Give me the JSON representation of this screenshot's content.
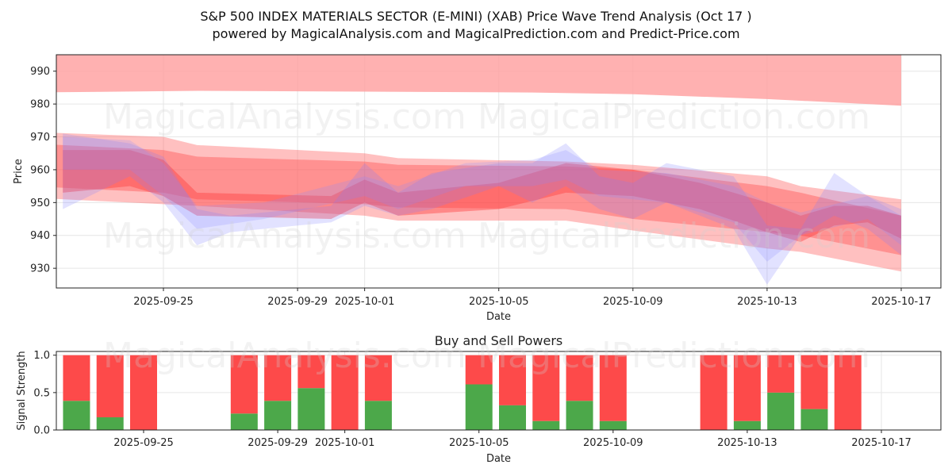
{
  "header": {
    "title": "S&P 500 INDEX MATERIALS SECTOR (E-MINI) (XAB) Price Wave Trend Analysis (Oct 17 )",
    "subtitle": "powered by MagicalAnalysis.com and MagicalPrediction.com and Predict-Price.com"
  },
  "watermarks": {
    "left": "MagicalAnalysis.com",
    "right": "MagicalPrediction.com"
  },
  "colors": {
    "buy": "#4ca84a",
    "sell": "#fd4a4a",
    "band_red": "#ff2a2a",
    "band_blue": "#6a6aff"
  },
  "chart_data": [
    {
      "type": "area",
      "name": "price-wave-trend",
      "title": "",
      "xlabel": "Date",
      "ylabel": "Price",
      "ylim": [
        924,
        995
      ],
      "xlim": [
        "2025-09-21",
        "2025-10-18"
      ],
      "grid": true,
      "xticks": [
        "2025-09-25",
        "2025-09-29",
        "2025-10-01",
        "2025-10-05",
        "2025-10-09",
        "2025-10-13",
        "2025-10-17"
      ],
      "yticks": [
        930,
        940,
        950,
        960,
        970,
        980,
        990
      ],
      "series": [
        {
          "name": "upper-projection-band",
          "color": "#ff9e9e",
          "x": [
            "2025-09-21",
            "2025-09-26",
            "2025-10-06",
            "2025-10-09",
            "2025-10-13",
            "2025-10-17"
          ],
          "upper": [
            996,
            996,
            996,
            996,
            996,
            996
          ],
          "lower": [
            983.5,
            984,
            983.5,
            983,
            981.5,
            979.5
          ]
        },
        {
          "name": "wave-band-1",
          "color": "#ff6a6a",
          "x": [
            "2025-09-21",
            "2025-09-25",
            "2025-09-26",
            "2025-10-01",
            "2025-10-02",
            "2025-10-07",
            "2025-10-09",
            "2025-10-13",
            "2025-10-14",
            "2025-10-17"
          ],
          "upper": [
            971.5,
            970,
            967.5,
            965,
            963.5,
            962.5,
            961.5,
            958,
            955,
            951
          ],
          "lower": [
            951.5,
            949.5,
            949,
            946,
            944.5,
            944.5,
            941.5,
            936,
            935,
            929
          ]
        },
        {
          "name": "wave-band-2",
          "color": "#ff5252",
          "x": [
            "2025-09-21",
            "2025-09-25",
            "2025-09-26",
            "2025-10-01",
            "2025-10-02",
            "2025-10-07",
            "2025-10-09",
            "2025-10-13",
            "2025-10-14",
            "2025-10-17"
          ],
          "upper": [
            968,
            966,
            964,
            962.5,
            961.5,
            961,
            960,
            955,
            953,
            946
          ],
          "lower": [
            955,
            953,
            951,
            949.5,
            948.5,
            948,
            945,
            941,
            940,
            934
          ]
        },
        {
          "name": "wave-band-3",
          "color": "#ff3b3b",
          "x": [
            "2025-09-22",
            "2025-09-24",
            "2025-09-25",
            "2025-09-26",
            "2025-09-30",
            "2025-10-01",
            "2025-10-02",
            "2025-10-05",
            "2025-10-07",
            "2025-10-09",
            "2025-10-11",
            "2025-10-13",
            "2025-10-14",
            "2025-10-15",
            "2025-10-16",
            "2025-10-17"
          ],
          "upper": [
            966,
            966,
            963,
            953,
            952,
            957,
            953,
            956,
            962,
            960,
            956,
            950,
            946,
            949,
            949,
            946
          ],
          "lower": [
            953,
            955,
            952,
            946,
            945,
            950,
            946,
            948,
            953,
            952,
            948,
            941,
            938,
            943,
            944,
            939
          ]
        },
        {
          "name": "blue-wave-1",
          "color": "#7a7aff",
          "x": [
            "2025-09-22",
            "2025-09-24",
            "2025-09-25",
            "2025-09-26",
            "2025-09-27",
            "2025-09-30",
            "2025-10-01",
            "2025-10-02",
            "2025-10-03",
            "2025-10-05",
            "2025-10-06",
            "2025-10-07",
            "2025-10-08",
            "2025-10-09",
            "2025-10-10",
            "2025-10-12",
            "2025-10-13",
            "2025-10-14",
            "2025-10-15",
            "2025-10-16",
            "2025-10-17"
          ],
          "upper": [
            971,
            968,
            964,
            948,
            946,
            949,
            962,
            953,
            959,
            962,
            962,
            968,
            958,
            956,
            962,
            958,
            943,
            942,
            959,
            952,
            948
          ],
          "lower": [
            948,
            958,
            950,
            937,
            941,
            944,
            949,
            946,
            948,
            955,
            950,
            955,
            948,
            945,
            950,
            942,
            925,
            940,
            946,
            942,
            934
          ]
        },
        {
          "name": "blue-wave-2",
          "color": "#8a8aff",
          "x": [
            "2025-09-22",
            "2025-09-24",
            "2025-09-25",
            "2025-09-26",
            "2025-09-28",
            "2025-10-01",
            "2025-10-02",
            "2025-10-04",
            "2025-10-06",
            "2025-10-07",
            "2025-10-08",
            "2025-10-10",
            "2025-10-12",
            "2025-10-13",
            "2025-10-14",
            "2025-10-16",
            "2025-10-17"
          ],
          "upper": [
            970,
            969,
            962,
            949,
            950,
            958,
            955,
            962,
            963,
            966,
            960,
            959,
            955,
            950,
            947,
            952,
            946
          ],
          "lower": [
            960,
            960,
            952,
            942,
            945,
            952,
            948,
            955,
            955,
            957,
            952,
            950,
            944,
            932,
            940,
            945,
            937
          ]
        }
      ]
    },
    {
      "type": "bar",
      "name": "buy-sell-powers",
      "title": "Buy and Sell Powers",
      "xlabel": "Date",
      "ylabel": "Signal Strength",
      "ylim": [
        0,
        1.05
      ],
      "yticks": [
        0.0,
        0.5,
        1.0
      ],
      "xticks": [
        "2025-09-25",
        "2025-09-29",
        "2025-10-01",
        "2025-10-05",
        "2025-10-09",
        "2025-10-13",
        "2025-10-17"
      ],
      "grid": true,
      "categories": [
        "2025-09-23",
        "2025-09-24",
        "2025-09-25",
        "2025-09-28",
        "2025-09-29",
        "2025-09-30",
        "2025-10-01",
        "2025-10-02",
        "2025-10-05",
        "2025-10-06",
        "2025-10-07",
        "2025-10-08",
        "2025-10-09",
        "2025-10-12",
        "2025-10-13",
        "2025-10-14",
        "2025-10-15",
        "2025-10-16"
      ],
      "series": [
        {
          "name": "Buy",
          "values": [
            0.39,
            0.17,
            0.0,
            0.22,
            0.39,
            0.56,
            0.0,
            0.39,
            0.61,
            0.33,
            0.12,
            0.39,
            0.12,
            0.0,
            0.12,
            0.5,
            0.28,
            0.0
          ]
        },
        {
          "name": "Sell",
          "values": [
            0.61,
            0.83,
            1.0,
            0.78,
            0.61,
            0.44,
            1.0,
            0.61,
            0.39,
            0.67,
            0.88,
            0.61,
            0.88,
            1.0,
            0.88,
            0.5,
            0.72,
            1.0
          ]
        }
      ]
    }
  ]
}
